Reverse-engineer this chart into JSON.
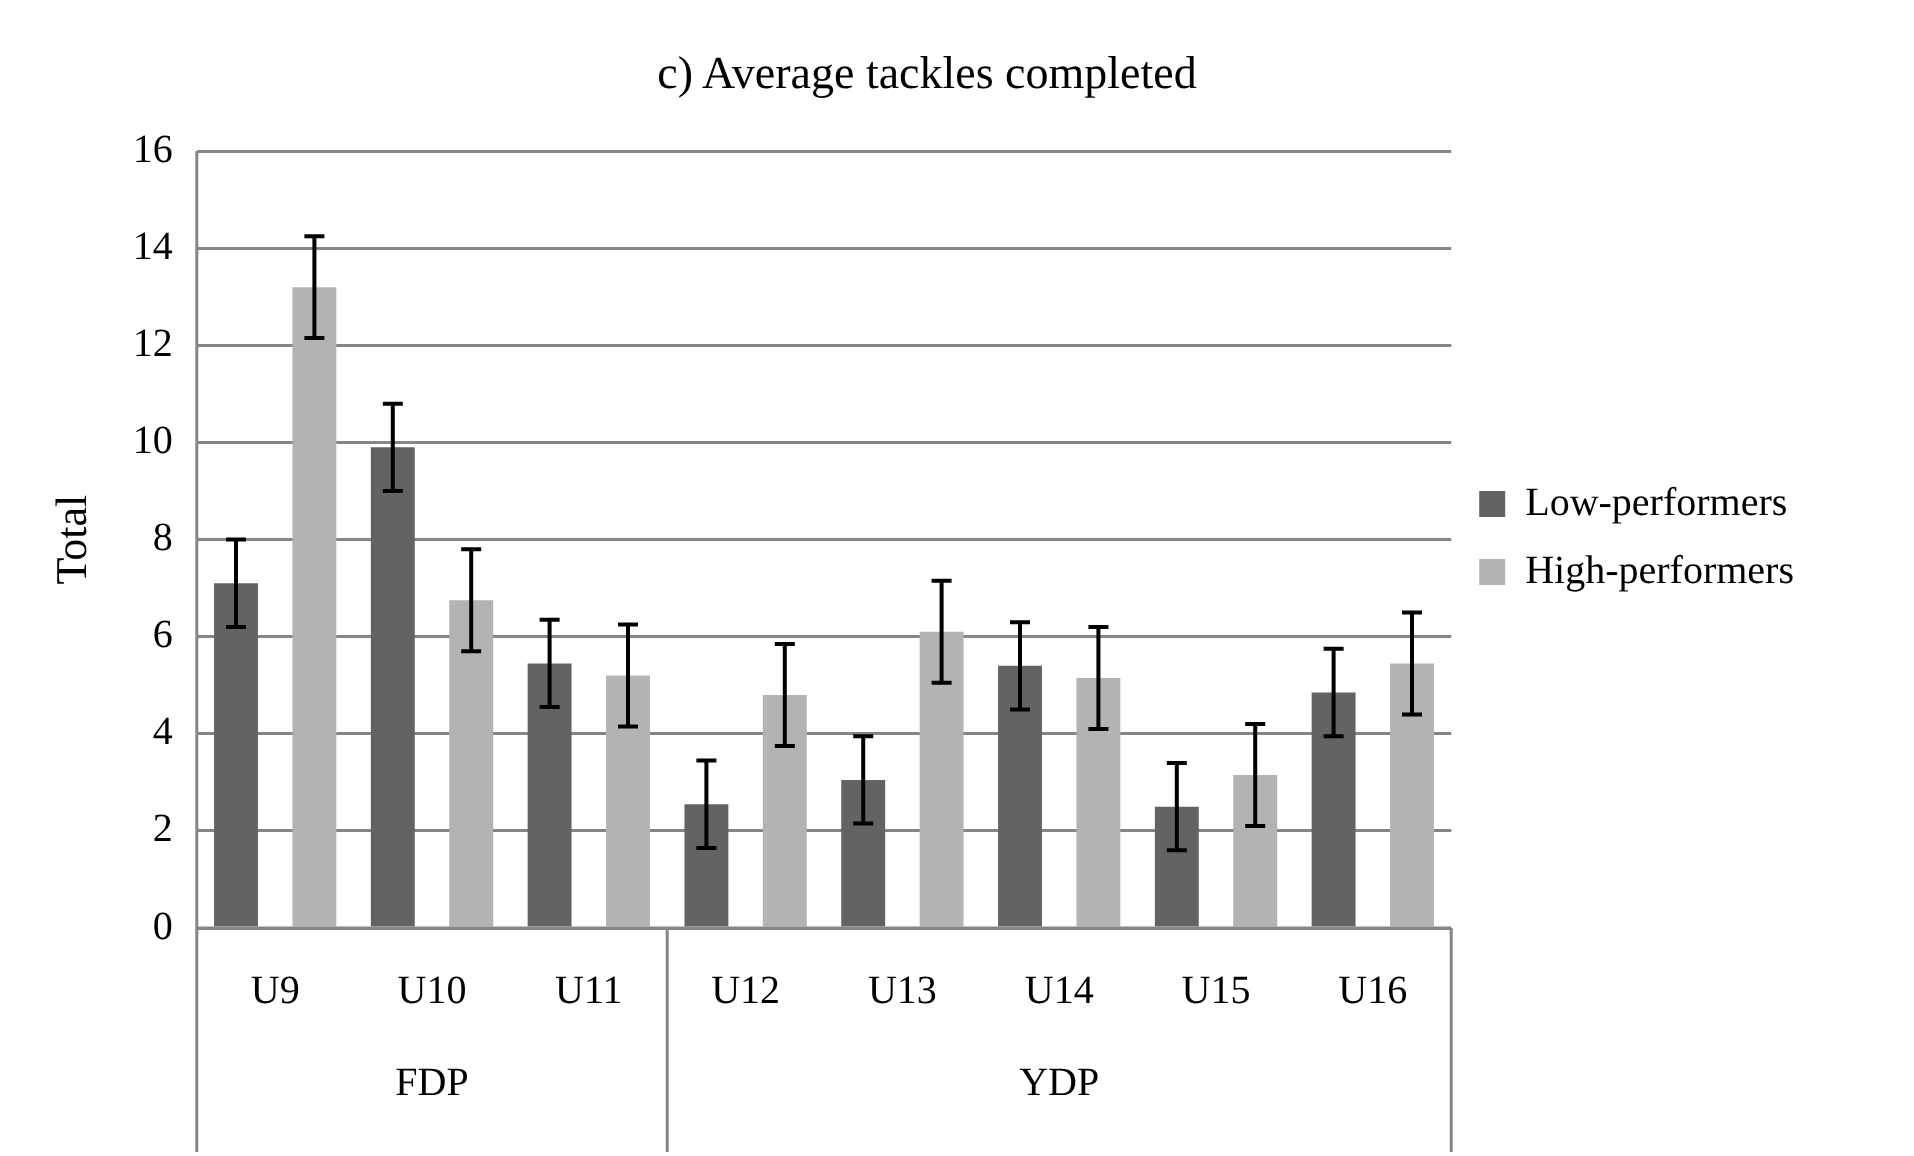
{
  "chart_data": {
    "type": "bar",
    "title": "c) Average tackles completed",
    "ylabel": "Total",
    "categories": [
      "U9",
      "U10",
      "U11",
      "U12",
      "U13",
      "U14",
      "U15",
      "U16"
    ],
    "series": [
      {
        "name": "Low-performers",
        "color": "#636363",
        "values": [
          7.1,
          9.9,
          5.45,
          2.55,
          3.05,
          5.4,
          2.5,
          4.85
        ],
        "errors": [
          0.9,
          0.9,
          0.9,
          0.9,
          0.9,
          0.9,
          0.9,
          0.9
        ]
      },
      {
        "name": "High-performers",
        "color": "#b3b3b3",
        "values": [
          13.2,
          6.75,
          5.2,
          4.8,
          6.1,
          5.15,
          3.15,
          5.45
        ],
        "errors": [
          1.05,
          1.05,
          1.05,
          1.05,
          1.05,
          1.05,
          1.05,
          1.05
        ]
      }
    ],
    "annotations": [
      "FDP",
      "YDP"
    ],
    "ylim": [
      0,
      16
    ],
    "yticks": [
      0,
      2,
      4,
      6,
      8,
      10,
      12,
      14,
      16
    ],
    "grid": "y",
    "legend": "right"
  }
}
